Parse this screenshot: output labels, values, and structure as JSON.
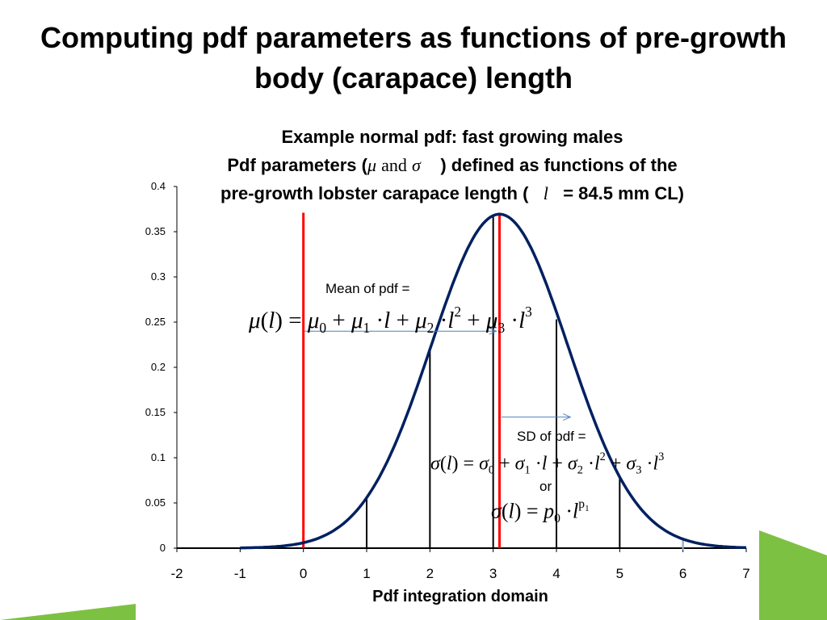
{
  "slide": {
    "title": "Computing pdf parameters as functions of pre-growth body (carapace) length",
    "accent_color": "#7dc142"
  },
  "chart_data": {
    "type": "line",
    "title_lines": [
      "Example normal pdf:  fast growing males",
      "Pdf parameters (",
      ") defined as functions of the",
      "pre-growth lobster carapace length (",
      "= 84.5 mm CL)"
    ],
    "title_symbols": {
      "mu": "μ",
      "and": "and",
      "sigma": "σ",
      "l": "l"
    },
    "xlabel": "Pdf integration domain",
    "ylabel": "",
    "xlim": [
      -2,
      7
    ],
    "ylim": [
      0,
      0.4
    ],
    "x_ticks": [
      -2,
      -1,
      0,
      1,
      2,
      3,
      4,
      5,
      6,
      7
    ],
    "y_ticks": [
      "0",
      "0.05",
      "0.1",
      "0.15",
      "0.2",
      "0.25",
      "0.3",
      "0.35",
      "0.4"
    ],
    "grid": false,
    "curve": {
      "mean": 3.1,
      "sd": 1.08,
      "x_range": [
        -1,
        7
      ],
      "color": "#002060"
    },
    "integration_bars": [
      {
        "x": 1,
        "y": 0.055
      },
      {
        "x": 2,
        "y": 0.218
      },
      {
        "x": 3,
        "y": 0.368
      },
      {
        "x": 4,
        "y": 0.253
      },
      {
        "x": 5,
        "y": 0.079
      },
      {
        "x": 6,
        "y": 0.009
      }
    ],
    "red_lines": [
      {
        "x": 0,
        "top": 0.371
      },
      {
        "x": 3.1,
        "top": 0.371
      }
    ],
    "red_color": "#ff0000",
    "arrows": [
      {
        "from": [
          0.02,
          0.24
        ],
        "to": [
          3.05,
          0.24
        ]
      },
      {
        "from": [
          3.13,
          0.145
        ],
        "to": [
          4.22,
          0.145
        ]
      }
    ],
    "arrow_color": "#4f81bd",
    "annotations": {
      "mean_label": "Mean of pdf =",
      "sd_label": "SD of pdf =",
      "or_label": "or"
    },
    "formulas": {
      "mean": {
        "lhs": "μ",
        "var": "l",
        "eq": "=",
        "t0": "μ",
        "s0": "0",
        "t1": "μ",
        "s1": "1",
        "t2": "μ",
        "s2": "2",
        "p2": "2",
        "t3": "μ",
        "s3": "3",
        "p3": "3",
        "dot": "·",
        "plus": "+"
      },
      "sd": {
        "lhs": "σ",
        "var": "l",
        "eq": "=",
        "t0": "σ",
        "s0": "0",
        "t1": "σ",
        "s1": "1",
        "t2": "σ",
        "s2": "2",
        "p2": "2",
        "t3": "σ",
        "s3": "3",
        "p3": "3",
        "dot": "·",
        "plus": "+"
      },
      "sd_power": {
        "lhs": "σ",
        "var": "l",
        "eq": "=",
        "coef": "p",
        "cs": "0",
        "dot": "·",
        "exp": "p",
        "exp_sub": "1"
      }
    }
  }
}
